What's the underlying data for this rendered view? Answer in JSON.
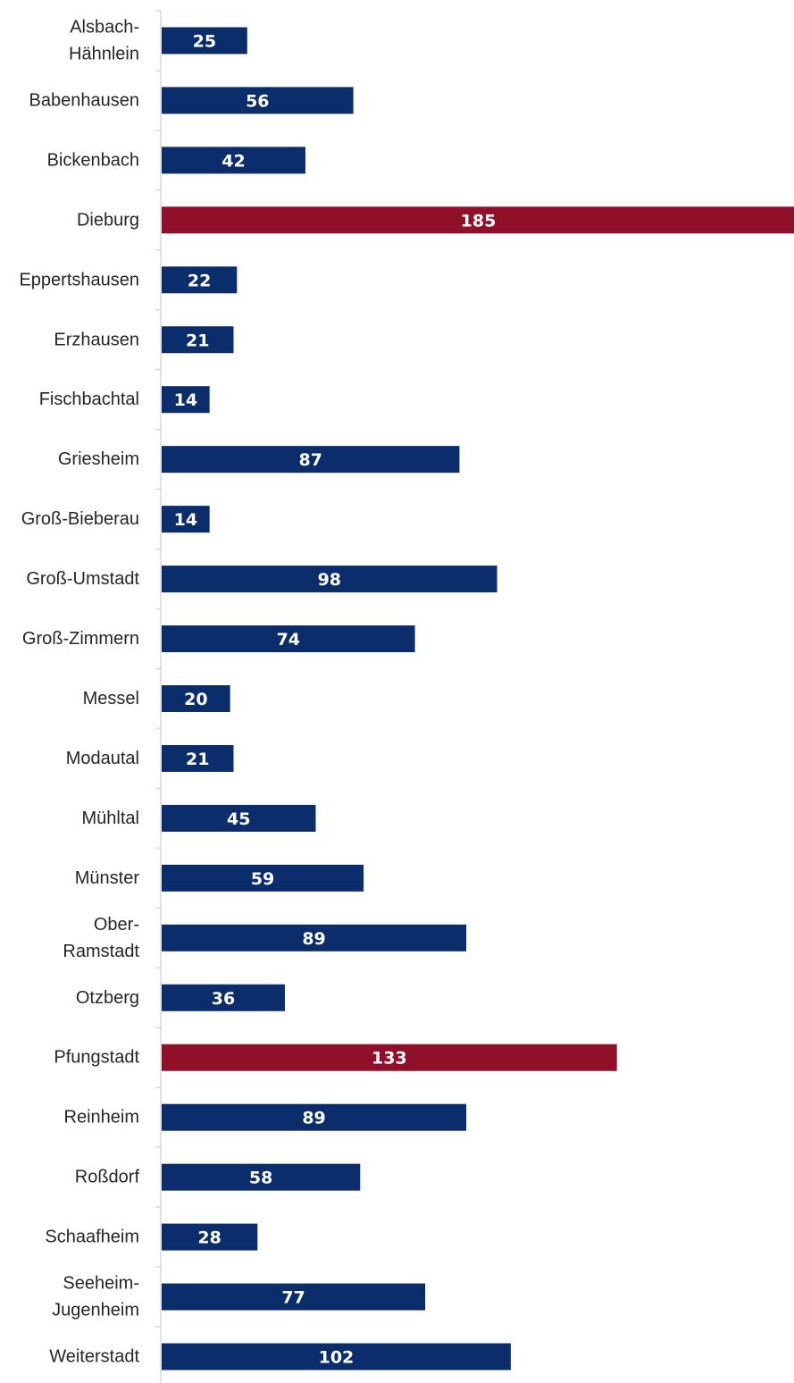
{
  "chart_data": {
    "type": "bar",
    "orientation": "horizontal",
    "categories": [
      [
        "Alsbach-",
        "Hähnlein"
      ],
      [
        "Babenhausen"
      ],
      [
        "Bickenbach"
      ],
      [
        "Dieburg"
      ],
      [
        "Eppertshausen"
      ],
      [
        "Erzhausen"
      ],
      [
        "Fischbachtal"
      ],
      [
        "Griesheim"
      ],
      [
        "Groß-Bieberau"
      ],
      [
        "Groß-Umstadt"
      ],
      [
        "Groß-Zimmern"
      ],
      [
        "Messel"
      ],
      [
        "Modautal"
      ],
      [
        "Mühltal"
      ],
      [
        "Münster"
      ],
      [
        "Ober-",
        "Ramstadt"
      ],
      [
        "Otzberg"
      ],
      [
        "Pfungstadt"
      ],
      [
        "Reinheim"
      ],
      [
        "Roßdorf"
      ],
      [
        "Schaafheim"
      ],
      [
        "Seeheim-",
        "Jugenheim"
      ],
      [
        "Weiterstadt"
      ]
    ],
    "values": [
      25,
      56,
      42,
      185,
      22,
      21,
      14,
      87,
      14,
      98,
      74,
      20,
      21,
      45,
      59,
      89,
      36,
      133,
      89,
      58,
      28,
      77,
      102
    ],
    "value_labels": [
      "25",
      "56",
      "42",
      "185",
      "22",
      "21",
      "14",
      "87",
      "14",
      "98",
      "74",
      "20",
      "21",
      "45",
      "59",
      "89",
      "36",
      "133",
      "89",
      "58",
      "28",
      "77",
      "102"
    ],
    "highlighted": [
      "Dieburg",
      "Pfungstadt"
    ],
    "xlim": [
      0,
      185
    ],
    "data_labels": "inside-center",
    "grid": false,
    "legend": "none",
    "colors": {
      "default_bar": "#0b2d6b",
      "highlight_bar": "#911029",
      "axis": "#d9d9d9",
      "label_text": "#262626",
      "value_text": "#ffffff"
    }
  }
}
